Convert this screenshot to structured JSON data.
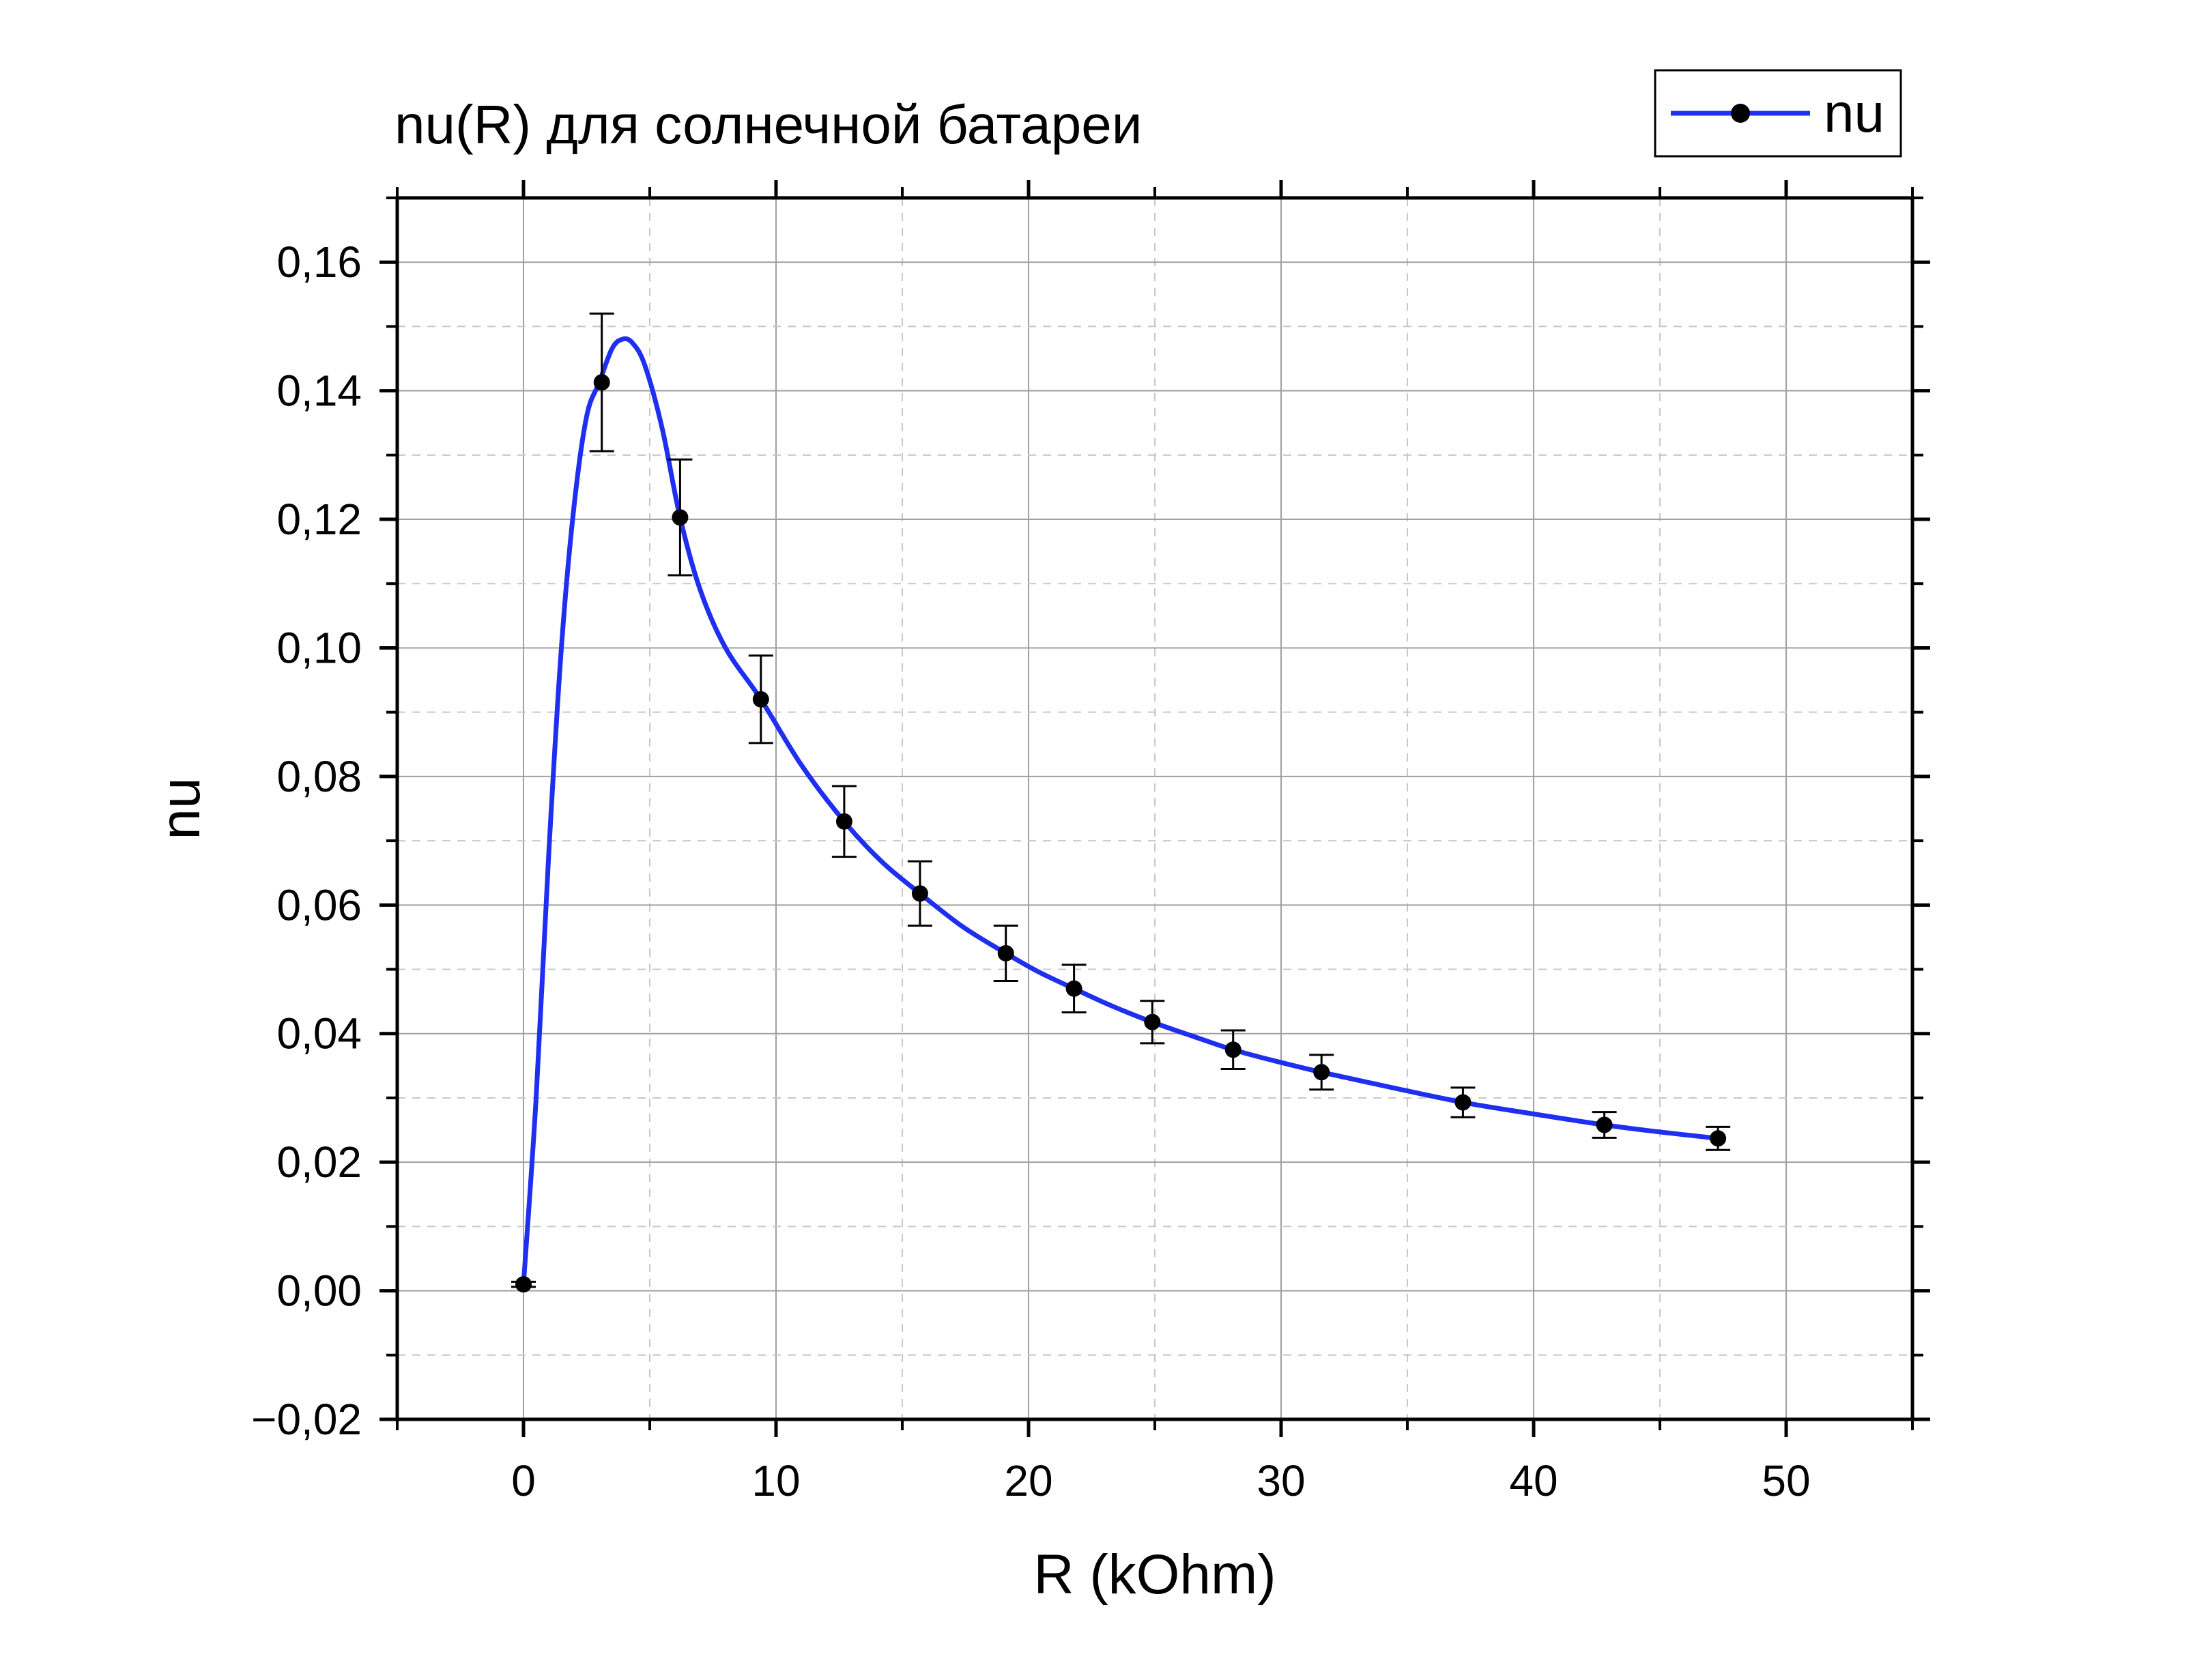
{
  "chart_data": {
    "type": "line",
    "title": "nu(R) для солнечной батареи",
    "xlabel": "R (kOhm)",
    "ylabel": "nu",
    "xlim": [
      -5,
      55
    ],
    "ylim": [
      -0.02,
      0.17
    ],
    "x_ticks": [
      0,
      10,
      20,
      30,
      40,
      50
    ],
    "x_tick_labels": [
      "0",
      "10",
      "20",
      "30",
      "40",
      "50"
    ],
    "y_ticks": [
      -0.02,
      0,
      0.02,
      0.04,
      0.06,
      0.08,
      0.1,
      0.12,
      0.14,
      0.16
    ],
    "y_tick_labels": [
      "−0,02",
      "0,00",
      "0,02",
      "0,04",
      "0,06",
      "0,08",
      "0,10",
      "0,12",
      "0,14",
      "0,16"
    ],
    "grid": true,
    "legend_position": "top-right",
    "series": [
      {
        "name": "nu",
        "color": "#1f2ff0",
        "marker_color": "#000000",
        "x": [
          0,
          3.1,
          6.2,
          9.4,
          12.7,
          15.7,
          19.1,
          21.8,
          24.9,
          28.1,
          31.6,
          37.2,
          42.8,
          47.3
        ],
        "y": [
          0.001,
          0.1413,
          0.1203,
          0.092,
          0.073,
          0.0618,
          0.0525,
          0.047,
          0.0418,
          0.0375,
          0.034,
          0.0293,
          0.0258,
          0.0237
        ],
        "y_err": [
          0.0004,
          0.0107,
          0.009,
          0.0068,
          0.0055,
          0.005,
          0.0043,
          0.0037,
          0.0033,
          0.003,
          0.0027,
          0.0023,
          0.002,
          0.0018
        ],
        "curve_x": [
          0,
          0.5,
          1.0,
          1.5,
          2.0,
          2.5,
          3.0,
          3.5,
          3.9,
          4.3,
          4.8,
          5.5,
          6.2,
          7.0,
          8.0,
          9.4,
          11.0,
          12.7,
          14.2,
          15.7,
          17.4,
          19.1,
          20.4,
          21.8,
          23.3,
          24.9,
          26.5,
          28.1,
          29.8,
          31.6,
          34.4,
          37.2,
          40.0,
          42.8,
          45.0,
          47.3
        ],
        "curve_y": [
          0.001,
          0.03,
          0.068,
          0.1,
          0.122,
          0.136,
          0.1413,
          0.1465,
          0.148,
          0.1475,
          0.144,
          0.134,
          0.1203,
          0.109,
          0.1,
          0.092,
          0.0818,
          0.073,
          0.0667,
          0.0618,
          0.0566,
          0.0525,
          0.0496,
          0.047,
          0.0443,
          0.0418,
          0.0396,
          0.0375,
          0.0357,
          0.034,
          0.0316,
          0.0293,
          0.0275,
          0.0258,
          0.0247,
          0.0237
        ]
      }
    ]
  }
}
